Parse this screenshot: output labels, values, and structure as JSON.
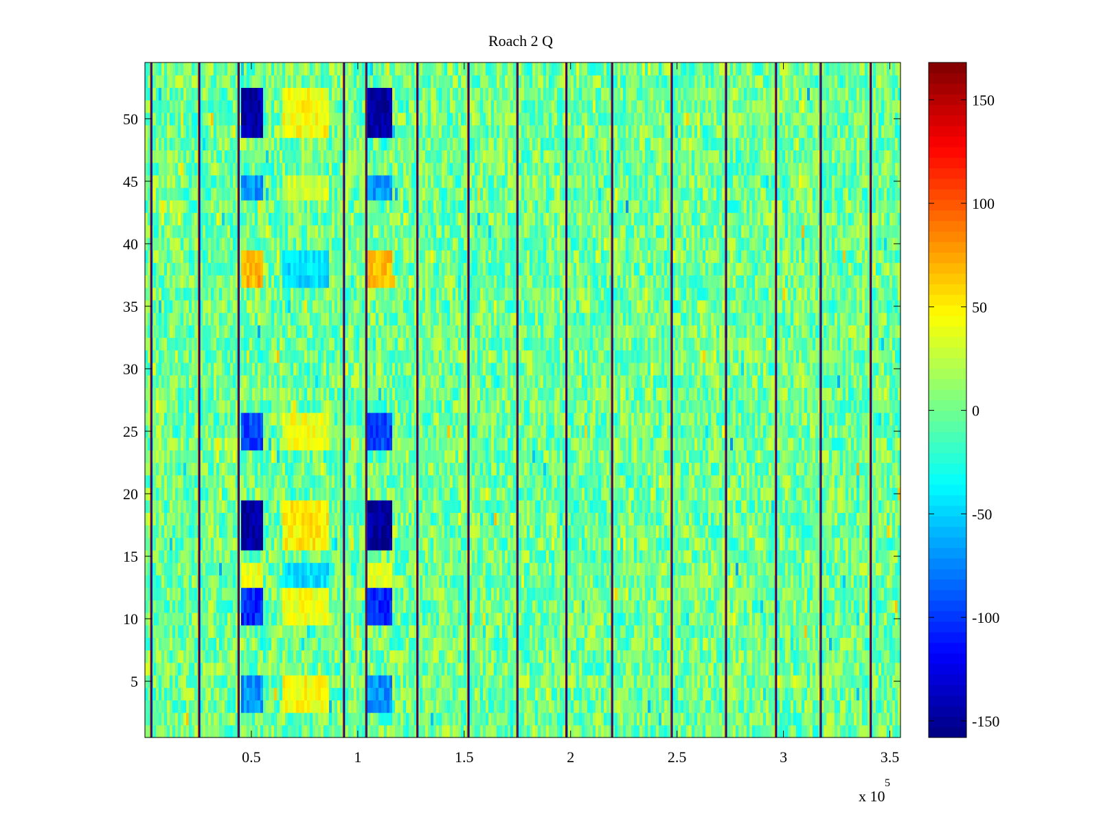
{
  "chart_data": {
    "type": "heatmap",
    "title": "Roach 2 Q",
    "xlabel": "",
    "ylabel": "",
    "x_exponent_label": "x 10",
    "x_exponent": "5",
    "xlim": [
      0,
      355000
    ],
    "ylim": [
      0.5,
      54.5
    ],
    "rows": 54,
    "x_ticks": [
      {
        "value": 50000,
        "label": "0.5"
      },
      {
        "value": 100000,
        "label": "1"
      },
      {
        "value": 150000,
        "label": "1.5"
      },
      {
        "value": 200000,
        "label": "2"
      },
      {
        "value": 250000,
        "label": "2.5"
      },
      {
        "value": 300000,
        "label": "3"
      },
      {
        "value": 350000,
        "label": "3.5"
      }
    ],
    "y_ticks": [
      {
        "value": 5,
        "label": "5"
      },
      {
        "value": 10,
        "label": "10"
      },
      {
        "value": 15,
        "label": "15"
      },
      {
        "value": 20,
        "label": "20"
      },
      {
        "value": 25,
        "label": "25"
      },
      {
        "value": 30,
        "label": "30"
      },
      {
        "value": 35,
        "label": "35"
      },
      {
        "value": 40,
        "label": "40"
      },
      {
        "value": 45,
        "label": "45"
      },
      {
        "value": 50,
        "label": "50"
      }
    ],
    "colorbar": {
      "colormap": "jet",
      "clim": [
        -158,
        168
      ],
      "ticks": [
        {
          "value": 150,
          "label": "150"
        },
        {
          "value": 100,
          "label": "100"
        },
        {
          "value": 50,
          "label": "50"
        },
        {
          "value": 0,
          "label": "0"
        },
        {
          "value": -50,
          "label": "-50"
        },
        {
          "value": -100,
          "label": "-100"
        },
        {
          "value": -150,
          "label": "-150"
        }
      ]
    },
    "vertical_lines_x": [
      3000,
      25500,
      44000,
      93500,
      104000,
      128000,
      152000,
      175000,
      198000,
      219500,
      247500,
      273000,
      296500,
      317500,
      341000
    ],
    "vertical_line_value": 160,
    "cluster_columns": [
      {
        "x_range": [
          45000,
          56000
        ],
        "kind": "low"
      },
      {
        "x_range": [
          65000,
          86000
        ],
        "kind": "high"
      },
      {
        "x_range": [
          105000,
          116000
        ],
        "kind": "low"
      },
      {
        "x_range": [
          104000,
          116000
        ],
        "kind": "low"
      }
    ],
    "cluster_rows": [
      {
        "y_range": [
          49,
          52
        ],
        "low_value": -145,
        "high_value": 45
      },
      {
        "y_range": [
          16,
          19
        ],
        "low_value": -150,
        "high_value": 50
      },
      {
        "y_range": [
          24,
          26
        ],
        "low_value": -95,
        "high_value": 40
      },
      {
        "y_range": [
          10,
          12
        ],
        "low_value": -105,
        "high_value": 40
      },
      {
        "y_range": [
          3,
          5
        ],
        "low_value": -70,
        "high_value": 45
      },
      {
        "y_range": [
          44,
          45
        ],
        "low_value": -70,
        "high_value": 30
      },
      {
        "y_range": [
          37,
          39
        ],
        "low_value": 70,
        "high_value": -45
      },
      {
        "y_range": [
          13,
          14
        ],
        "low_value": 40,
        "high_value": -45
      }
    ],
    "background_value_range": [
      -30,
      30
    ],
    "grid": false
  }
}
